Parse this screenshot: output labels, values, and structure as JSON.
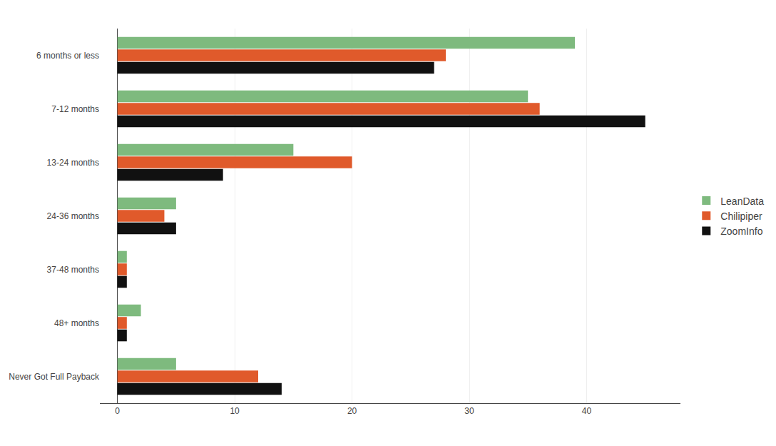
{
  "chart_data": {
    "type": "bar",
    "orientation": "horizontal",
    "categories": [
      "6 months or less",
      "7-12 months",
      "13-24 months",
      "24-36 months",
      "37-48 months",
      "48+ months",
      "Never Got Full Payback"
    ],
    "series": [
      {
        "name": "LeanData",
        "color": "#7eba7e",
        "values": [
          39,
          35,
          15,
          5,
          0.8,
          2,
          5
        ]
      },
      {
        "name": "Chilipiper",
        "color": "#e05a2b",
        "values": [
          28,
          36,
          20,
          4,
          0.8,
          0.8,
          12
        ]
      },
      {
        "name": "ZoomInfo",
        "color": "#111111",
        "values": [
          27,
          45,
          9,
          5,
          0.8,
          0.8,
          14
        ]
      }
    ],
    "xlim": [
      -1.5,
      48
    ],
    "xticks": [
      0,
      10,
      20,
      30,
      40
    ],
    "grid": true,
    "legend": "right"
  }
}
